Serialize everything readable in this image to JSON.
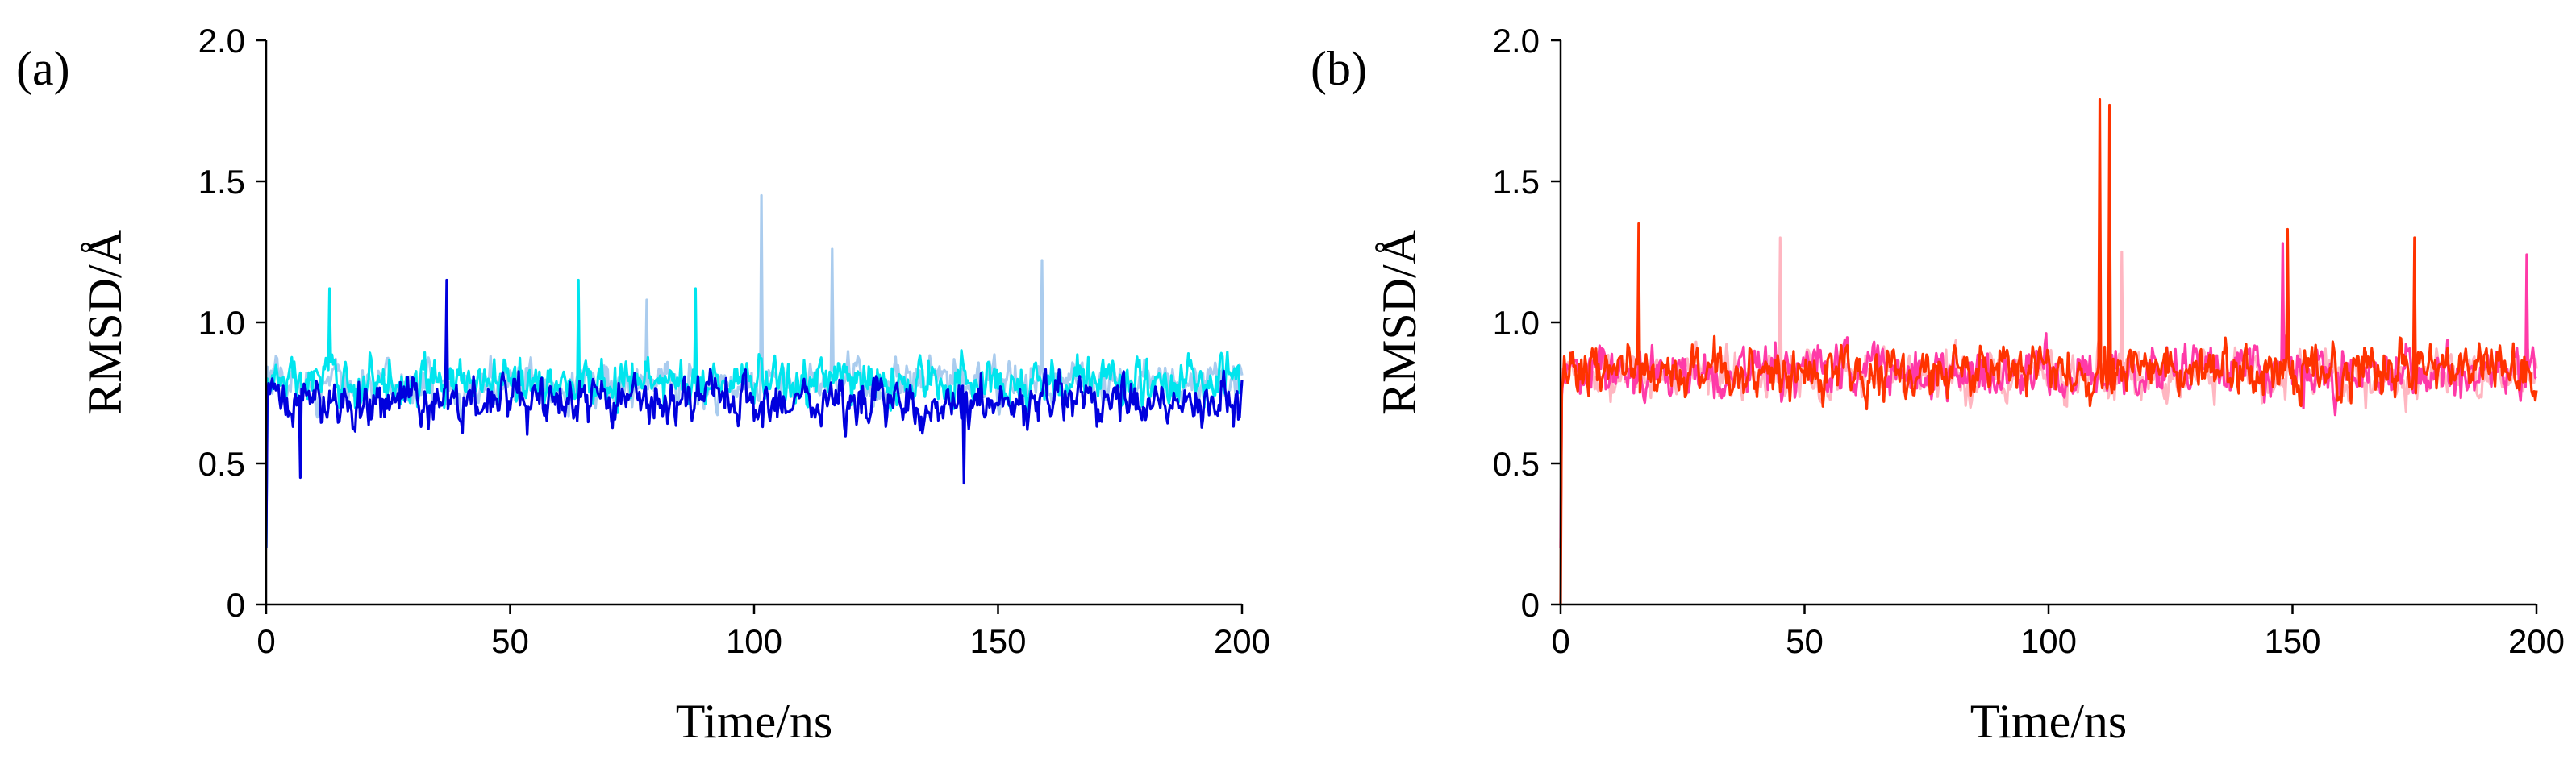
{
  "chart_data": [
    {
      "type": "line",
      "panel_label": "(a)",
      "xlabel": "Time/ns",
      "ylabel": "RMSD/Å",
      "xlim": [
        0,
        200
      ],
      "ylim": [
        0,
        2.0
      ],
      "xticks": [
        "0",
        "50",
        "100",
        "150",
        "200"
      ],
      "yticks": [
        "0",
        "0.5",
        "1.0",
        "1.5",
        "2.0"
      ],
      "grid": false,
      "legend": "none",
      "series": [
        {
          "color": "#aaccee",
          "start": 0.2,
          "baseline": 0.78,
          "amplitude": 0.12,
          "points": 800,
          "spikes": [
            [
              101.5,
              1.45
            ],
            [
              116,
              1.26
            ],
            [
              78,
              1.08
            ],
            [
              159,
              1.22
            ]
          ]
        },
        {
          "color": "#00e5ee",
          "start": 0.2,
          "baseline": 0.79,
          "amplitude": 0.13,
          "points": 800,
          "spikes": [
            [
              13,
              1.12
            ],
            [
              64,
              1.15
            ],
            [
              88,
              1.12
            ]
          ]
        },
        {
          "color": "#0000dd",
          "start": 0.2,
          "baseline": 0.72,
          "amplitude": 0.13,
          "points": 800,
          "spikes": [
            [
              37,
              1.15
            ],
            [
              143,
              0.43
            ],
            [
              7,
              0.45
            ]
          ]
        }
      ]
    },
    {
      "type": "line",
      "panel_label": "(b)",
      "xlabel": "Time/ns",
      "ylabel": "RMSD/Å",
      "xlim": [
        0,
        200
      ],
      "ylim": [
        0,
        2.0
      ],
      "xticks": [
        "0",
        "50",
        "100",
        "150",
        "200"
      ],
      "yticks": [
        "0",
        "0.5",
        "1.0",
        "1.5",
        "2.0"
      ],
      "grid": false,
      "legend": "none",
      "series": [
        {
          "color": "#ffb6c1",
          "start": 0.2,
          "baseline": 0.82,
          "amplitude": 0.13,
          "points": 800,
          "spikes": [
            [
              45,
              1.3
            ],
            [
              115,
              1.25
            ]
          ]
        },
        {
          "color": "#ff3aa8",
          "start": 0.2,
          "baseline": 0.83,
          "amplitude": 0.14,
          "points": 800,
          "spikes": [
            [
              148,
              1.28
            ],
            [
              198,
              1.24
            ]
          ]
        },
        {
          "color": "#ff3300",
          "start": 0.0,
          "baseline": 0.83,
          "amplitude": 0.13,
          "points": 800,
          "spikes": [
            [
              16,
              1.35
            ],
            [
              110.5,
              1.79
            ],
            [
              112.5,
              1.77
            ],
            [
              149,
              1.33
            ],
            [
              175,
              1.3
            ]
          ]
        }
      ]
    }
  ]
}
